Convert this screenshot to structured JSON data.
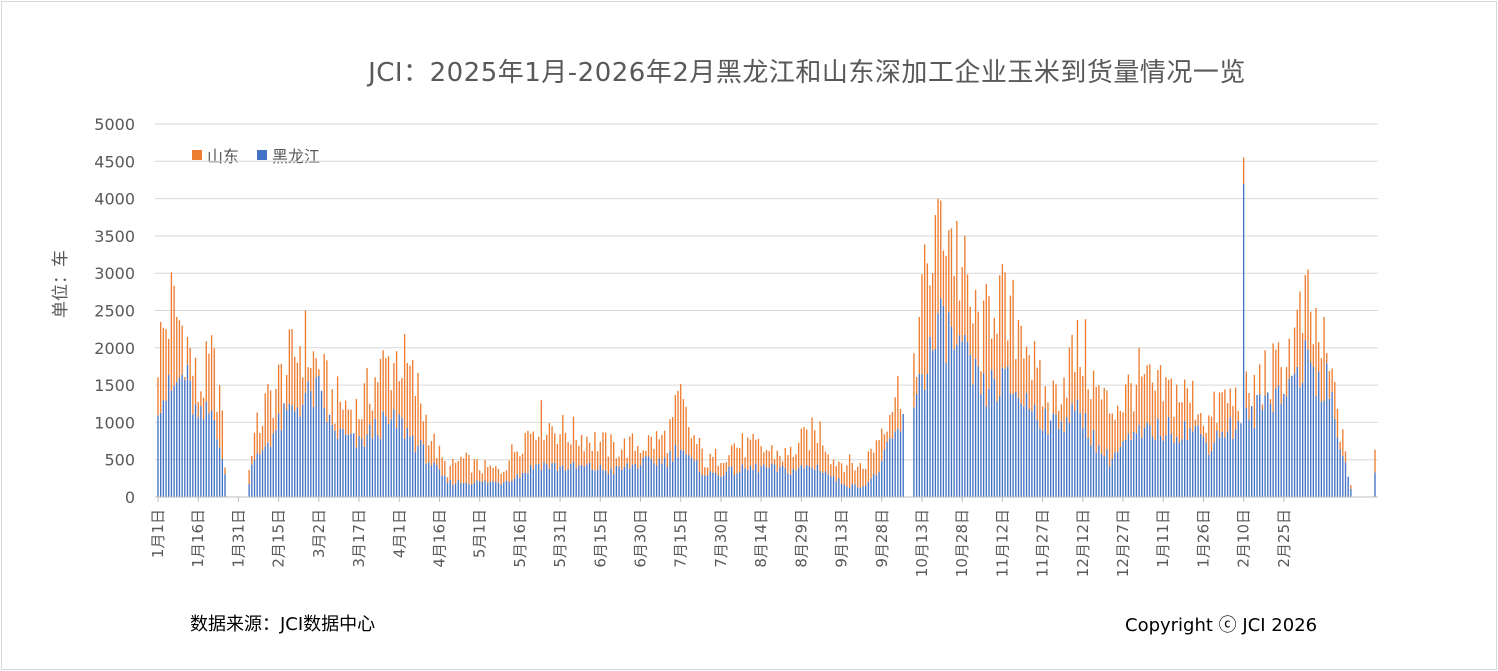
{
  "title": "JCI：2025年1月-2026年2月黑龙江和山东深加工企业玉米到货量情况一览",
  "ylabel": "单位：车",
  "source": "数据来源：JCI数据中心",
  "copyright": "Copyright ⓒ JCI 2026",
  "colors": {
    "shandong": "#ED7D31",
    "heilongjiang": "#4472C4",
    "grid": "#d9d9d9",
    "axis_text": "#595959"
  },
  "chart_data": {
    "type": "bar",
    "stacked": true,
    "ylim": [
      0,
      5000
    ],
    "yticks": [
      0,
      500,
      1000,
      1500,
      2000,
      2500,
      3000,
      3500,
      4000,
      4500,
      5000
    ],
    "xticks": [
      "1月1日",
      "1月16日",
      "1月31日",
      "2月15日",
      "3月2日",
      "3月17日",
      "4月1日",
      "4月16日",
      "5月1日",
      "5月16日",
      "5月31日",
      "6月15日",
      "6月30日",
      "7月15日",
      "7月30日",
      "8月14日",
      "8月29日",
      "9月13日",
      "9月28日",
      "10月13日",
      "10月28日",
      "11月12日",
      "11月27日",
      "12月12日",
      "12月27日",
      "1月11日",
      "1月26日",
      "2月10日",
      "2月25日"
    ],
    "legend_position": "top-left",
    "series_names": [
      "山东",
      "黑龙江"
    ],
    "anchors": [
      {
        "day": 0,
        "hlj": 1350,
        "total": 1950
      },
      {
        "day": 5,
        "hlj": 1400,
        "total": 2550
      },
      {
        "day": 10,
        "hlj": 1650,
        "total": 2200
      },
      {
        "day": 15,
        "hlj": 1000,
        "total": 1400
      },
      {
        "day": 20,
        "hlj": 1150,
        "total": 1800
      },
      {
        "day": 23,
        "hlj": 800,
        "total": 1400
      },
      {
        "day": 26,
        "hlj": 0,
        "total": 0
      },
      {
        "day": 33,
        "hlj": 0,
        "total": 0
      },
      {
        "day": 35,
        "hlj": 400,
        "total": 700
      },
      {
        "day": 40,
        "hlj": 700,
        "total": 1200
      },
      {
        "day": 48,
        "hlj": 1100,
        "total": 1700
      },
      {
        "day": 54,
        "hlj": 1300,
        "total": 2100
      },
      {
        "day": 60,
        "hlj": 1400,
        "total": 1700
      },
      {
        "day": 65,
        "hlj": 900,
        "total": 1300
      },
      {
        "day": 75,
        "hlj": 700,
        "total": 1150
      },
      {
        "day": 82,
        "hlj": 950,
        "total": 1650
      },
      {
        "day": 90,
        "hlj": 1000,
        "total": 1900
      },
      {
        "day": 97,
        "hlj": 700,
        "total": 1400
      },
      {
        "day": 103,
        "hlj": 400,
        "total": 700
      },
      {
        "day": 108,
        "hlj": 200,
        "total": 350
      },
      {
        "day": 113,
        "hlj": 200,
        "total": 500
      },
      {
        "day": 120,
        "hlj": 200,
        "total": 400
      },
      {
        "day": 128,
        "hlj": 200,
        "total": 350
      },
      {
        "day": 135,
        "hlj": 300,
        "total": 750
      },
      {
        "day": 142,
        "hlj": 450,
        "total": 1050
      },
      {
        "day": 150,
        "hlj": 400,
        "total": 900
      },
      {
        "day": 160,
        "hlj": 400,
        "total": 800
      },
      {
        "day": 170,
        "hlj": 350,
        "total": 650
      },
      {
        "day": 180,
        "hlj": 450,
        "total": 700
      },
      {
        "day": 190,
        "hlj": 500,
        "total": 800
      },
      {
        "day": 195,
        "hlj": 700,
        "total": 1300
      },
      {
        "day": 198,
        "hlj": 500,
        "total": 900
      },
      {
        "day": 205,
        "hlj": 300,
        "total": 450
      },
      {
        "day": 215,
        "hlj": 350,
        "total": 700
      },
      {
        "day": 225,
        "hlj": 400,
        "total": 650
      },
      {
        "day": 235,
        "hlj": 350,
        "total": 550
      },
      {
        "day": 242,
        "hlj": 400,
        "total": 800
      },
      {
        "day": 247,
        "hlj": 400,
        "total": 900
      },
      {
        "day": 252,
        "hlj": 250,
        "total": 500
      },
      {
        "day": 258,
        "hlj": 150,
        "total": 450
      },
      {
        "day": 263,
        "hlj": 150,
        "total": 400
      },
      {
        "day": 268,
        "hlj": 300,
        "total": 750
      },
      {
        "day": 273,
        "hlj": 700,
        "total": 1250
      },
      {
        "day": 278,
        "hlj": 1000,
        "total": 1500
      },
      {
        "day": 283,
        "hlj": 1450,
        "total": 2100
      },
      {
        "day": 288,
        "hlj": 1900,
        "total": 3200
      },
      {
        "day": 293,
        "hlj": 2300,
        "total": 3900
      },
      {
        "day": 298,
        "hlj": 2000,
        "total": 3300
      },
      {
        "day": 303,
        "hlj": 1700,
        "total": 2500
      },
      {
        "day": 308,
        "hlj": 1400,
        "total": 2100
      },
      {
        "day": 312,
        "hlj": 1500,
        "total": 2900
      },
      {
        "day": 317,
        "hlj": 1500,
        "total": 2300
      },
      {
        "day": 323,
        "hlj": 1300,
        "total": 2400
      },
      {
        "day": 328,
        "hlj": 1150,
        "total": 1500
      },
      {
        "day": 333,
        "hlj": 1000,
        "total": 1250
      },
      {
        "day": 340,
        "hlj": 1100,
        "total": 1800
      },
      {
        "day": 345,
        "hlj": 1100,
        "total": 2000
      },
      {
        "day": 350,
        "hlj": 700,
        "total": 1400
      },
      {
        "day": 355,
        "hlj": 500,
        "total": 1200
      },
      {
        "day": 360,
        "hlj": 700,
        "total": 1300
      },
      {
        "day": 365,
        "hlj": 800,
        "total": 1600
      },
      {
        "day": 372,
        "hlj": 900,
        "total": 1400
      },
      {
        "day": 380,
        "hlj": 900,
        "total": 1400
      },
      {
        "day": 387,
        "hlj": 900,
        "total": 1300
      },
      {
        "day": 392,
        "hlj": 700,
        "total": 1000
      },
      {
        "day": 397,
        "hlj": 900,
        "total": 1300
      },
      {
        "day": 403,
        "hlj": 950,
        "total": 1300
      },
      {
        "day": 408,
        "hlj": 1100,
        "total": 1350
      },
      {
        "day": 412,
        "hlj": 1250,
        "total": 1600
      },
      {
        "day": 417,
        "hlj": 1450,
        "total": 1650
      },
      {
        "day": 423,
        "hlj": 1600,
        "total": 2000
      },
      {
        "day": 428,
        "hlj": 1800,
        "total": 2500
      },
      {
        "day": 433,
        "hlj": 1600,
        "total": 2100
      },
      {
        "day": 436,
        "hlj": 1500,
        "total": 1800
      },
      {
        "day": 440,
        "hlj": 900,
        "total": 1200
      },
      {
        "day": 443,
        "hlj": 400,
        "total": 500
      },
      {
        "day": 446,
        "hlj": 0,
        "total": 0
      },
      {
        "day": 453,
        "hlj": 0,
        "total": 0
      },
      {
        "day": 454,
        "hlj": 300,
        "total": 650
      }
    ],
    "zero_days": [
      279,
      280,
      281
    ],
    "peaks": [
      {
        "day": 405,
        "hlj": 4200,
        "total": 4550
      }
    ]
  }
}
